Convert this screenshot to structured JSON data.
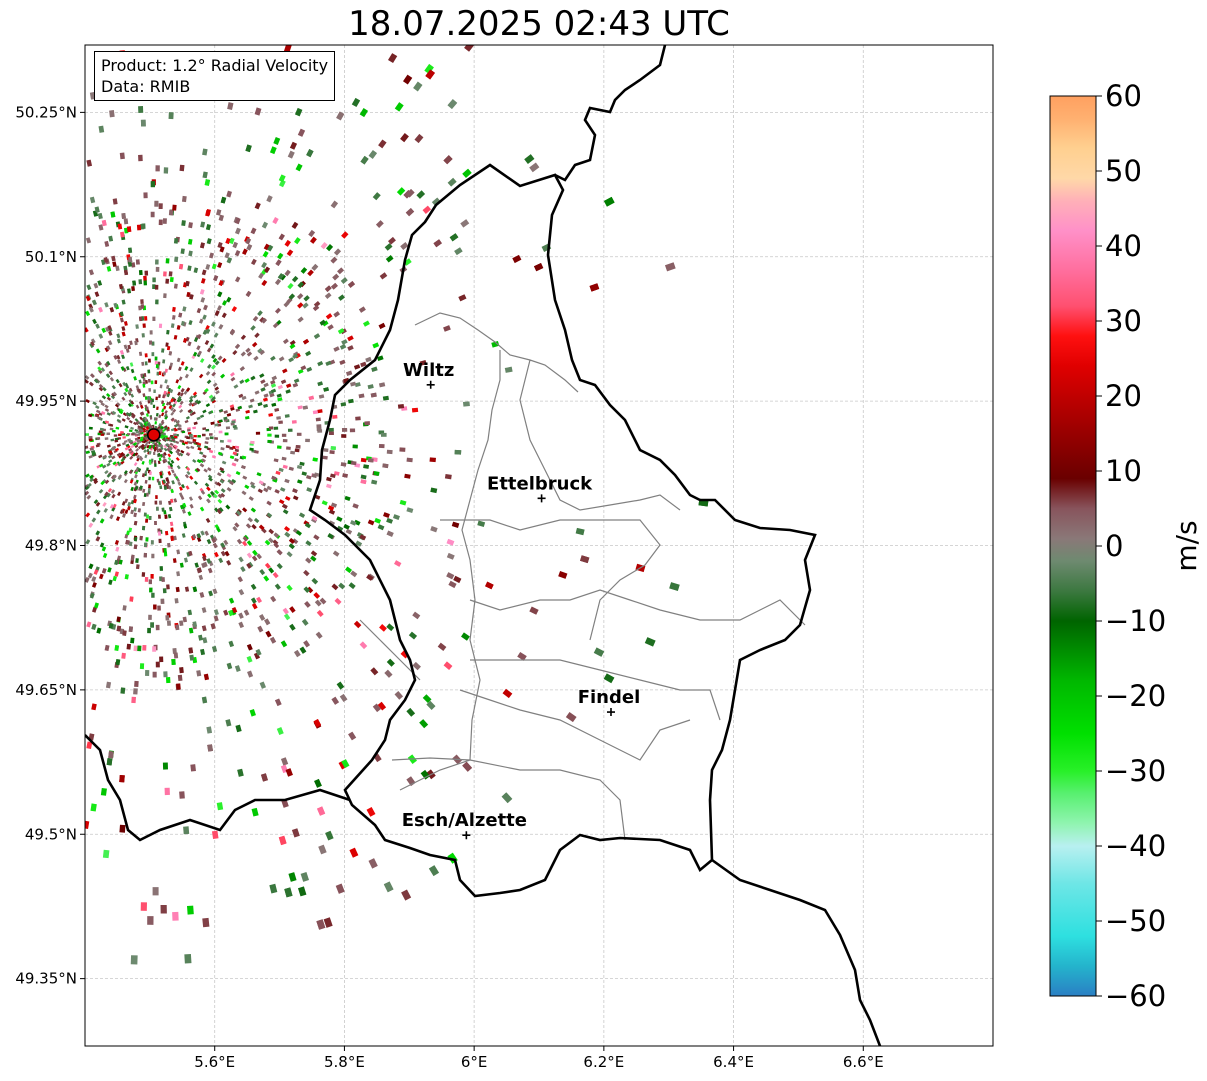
{
  "title": "18.07.2025 02:43 UTC",
  "info_box": {
    "product_line": "Product: 1.2° Radial Velocity",
    "data_line": "Data: RMIB"
  },
  "map": {
    "lon_range": [
      5.4,
      6.8
    ],
    "lat_range": [
      49.28,
      50.32
    ],
    "lon_ticks": [
      "5.6°E",
      "5.8°E",
      "6°E",
      "6.2°E",
      "6.4°E",
      "6.6°E"
    ],
    "lon_tick_values": [
      5.6,
      5.8,
      6.0,
      6.2,
      6.4,
      6.6
    ],
    "lat_ticks": [
      "50.25°N",
      "50.1°N",
      "49.95°N",
      "49.8°N",
      "49.65°N",
      "49.5°N",
      "49.35°N"
    ],
    "lat_tick_values": [
      50.25,
      50.1,
      49.95,
      49.8,
      49.65,
      49.5,
      49.35
    ],
    "grid": true,
    "radar_site": {
      "lon": 5.506,
      "lat": 49.915,
      "color": "#e00000"
    },
    "cities": [
      {
        "name": "Wiltz",
        "lon": 5.933,
        "lat": 49.967
      },
      {
        "name": "Ettelbruck",
        "lon": 6.104,
        "lat": 49.849
      },
      {
        "name": "Findel",
        "lon": 6.211,
        "lat": 49.627
      },
      {
        "name": "Esch/Alzette",
        "lon": 5.988,
        "lat": 49.499
      }
    ]
  },
  "colorbar": {
    "label": "m/s",
    "min": -60,
    "max": 60,
    "tick_labels": [
      "60",
      "50",
      "40",
      "30",
      "20",
      "10",
      "0",
      "−10",
      "−20",
      "−30",
      "−40",
      "−50",
      "−60"
    ],
    "tick_values": [
      60,
      50,
      40,
      30,
      20,
      10,
      0,
      -10,
      -20,
      -30,
      -40,
      -50,
      -60
    ],
    "stops": [
      {
        "v": -60,
        "c": "#2a7fc4"
      },
      {
        "v": -56,
        "c": "#24b4cc"
      },
      {
        "v": -52,
        "c": "#2ee0e0"
      },
      {
        "v": -45,
        "c": "#6ee6e6"
      },
      {
        "v": -40,
        "c": "#b8f0f0"
      },
      {
        "v": -37,
        "c": "#90f4b0"
      },
      {
        "v": -33,
        "c": "#58f070"
      },
      {
        "v": -30,
        "c": "#28f028"
      },
      {
        "v": -25,
        "c": "#00e000"
      },
      {
        "v": -18,
        "c": "#00b800"
      },
      {
        "v": -10,
        "c": "#006400"
      },
      {
        "v": -6,
        "c": "#3c7840"
      },
      {
        "v": -2,
        "c": "#6e8a70"
      },
      {
        "v": 1,
        "c": "#8a7878"
      },
      {
        "v": 5,
        "c": "#88545c"
      },
      {
        "v": 9,
        "c": "#6a0000"
      },
      {
        "v": 16,
        "c": "#a00000"
      },
      {
        "v": 24,
        "c": "#e00000"
      },
      {
        "v": 28,
        "c": "#ff1010"
      },
      {
        "v": 32,
        "c": "#ff5070"
      },
      {
        "v": 37,
        "c": "#ff70a0"
      },
      {
        "v": 42,
        "c": "#ff90c8"
      },
      {
        "v": 46,
        "c": "#ffb0b8"
      },
      {
        "v": 49,
        "c": "#ffd8a8"
      },
      {
        "v": 53,
        "c": "#ffd090"
      },
      {
        "v": 57,
        "c": "#ffb070"
      },
      {
        "v": 60,
        "c": "#ffa060"
      }
    ]
  }
}
